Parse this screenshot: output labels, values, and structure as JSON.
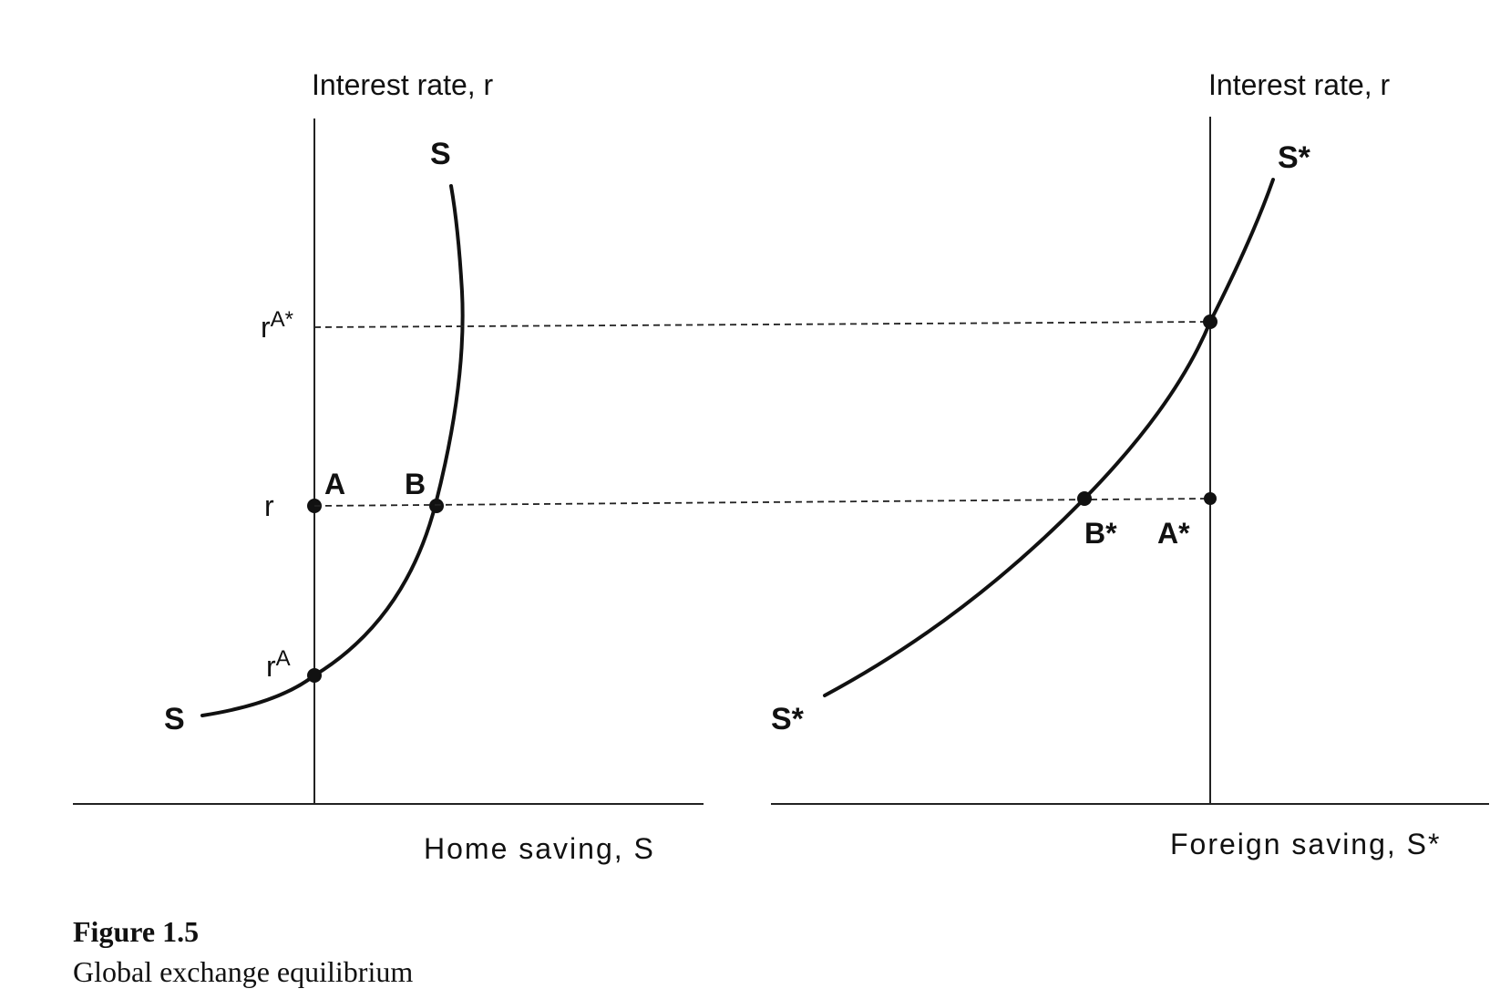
{
  "left_panel": {
    "y_axis_title": "Interest rate, r",
    "x_axis_title": "Home saving, S",
    "curve_label_top": "S",
    "curve_label_bottom": "S",
    "tick_r_a_star_base": "r",
    "tick_r_a_star_sup": "A*",
    "tick_r": "r",
    "tick_r_a_base": "r",
    "tick_r_a_sup": "A",
    "point_a": "A",
    "point_b": "B"
  },
  "right_panel": {
    "y_axis_title": "Interest rate, r",
    "x_axis_title": "Foreign saving, S*",
    "curve_label_top": "S*",
    "curve_label_bottom": "S*",
    "point_b_star": "B*",
    "point_a_star": "A*"
  },
  "caption": {
    "title": "Figure 1.5",
    "subtitle": "Global exchange equilibrium"
  }
}
